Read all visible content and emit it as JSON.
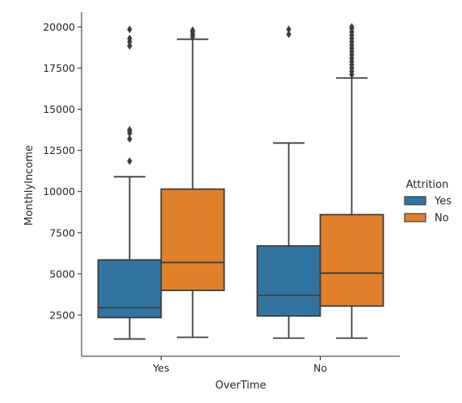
{
  "chart_data": {
    "type": "box",
    "xlabel": "OverTime",
    "ylabel": "MonthlyIncome",
    "categories": [
      "Yes",
      "No"
    ],
    "ylim": [
      0,
      20900
    ],
    "yticks": [
      2500,
      5000,
      7500,
      10000,
      12500,
      15000,
      17500,
      20000
    ],
    "ytick_labels": [
      "2500",
      "5000",
      "7500",
      "10000",
      "12500",
      "15000",
      "17500",
      "20000"
    ],
    "legend": {
      "title": "Attrition",
      "placement": "right",
      "entries": [
        "Yes",
        "No"
      ]
    },
    "series": [
      {
        "name": "Yes",
        "color": "#3274a1",
        "boxes": [
          {
            "category": "Yes",
            "whisker_low": 1050,
            "q1": 2350,
            "median": 2950,
            "q3": 5850,
            "whisker_high": 10900,
            "outliers": [
              11850,
              13200,
              13550,
              13700,
              13750,
              18850,
              19100,
              19300,
              19850
            ]
          },
          {
            "category": "No",
            "whisker_low": 1100,
            "q1": 2450,
            "median": 3700,
            "q3": 6700,
            "whisker_high": 12950,
            "outliers": [
              19550,
              19850
            ]
          }
        ]
      },
      {
        "name": "No",
        "color": "#e1812c",
        "boxes": [
          {
            "category": "Yes",
            "whisker_low": 1150,
            "q1": 4000,
            "median": 5700,
            "q3": 10150,
            "whisker_high": 19250,
            "outliers": [
              19400,
              19550,
              19700,
              19800
            ]
          },
          {
            "category": "No",
            "whisker_low": 1100,
            "q1": 3050,
            "median": 5050,
            "q3": 8600,
            "whisker_high": 16900,
            "outliers": [
              17100,
              17300,
              17500,
              17700,
              17900,
              18100,
              18300,
              18500,
              18700,
              18900,
              19100,
              19300,
              19500,
              19700,
              19900,
              20000
            ]
          }
        ]
      }
    ]
  }
}
